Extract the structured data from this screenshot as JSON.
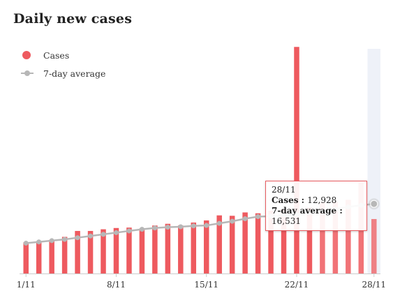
{
  "title": "Daily new cases",
  "legend": {
    "cases_label": "Cases",
    "avg_label": "7-day average"
  },
  "tooltip": {
    "date": "28/11",
    "cases_label": "Cases",
    "cases_value": "12,928",
    "avg_label": "7-day average",
    "avg_value": "16,531"
  },
  "colors": {
    "cases": "#ee5a5f",
    "average": "#b7b7b7",
    "highlight_band": "#eef1f8"
  },
  "chart_data": {
    "type": "bar",
    "title": "Daily new cases",
    "x_tick_labels": [
      "1/11",
      "8/11",
      "15/11",
      "22/11",
      "28/11"
    ],
    "categories": [
      "1/11",
      "2/11",
      "3/11",
      "4/11",
      "5/11",
      "6/11",
      "7/11",
      "8/11",
      "9/11",
      "10/11",
      "11/11",
      "12/11",
      "13/11",
      "14/11",
      "15/11",
      "16/11",
      "17/11",
      "18/11",
      "19/11",
      "20/11",
      "21/11",
      "22/11",
      "23/11",
      "24/11",
      "25/11",
      "26/11",
      "27/11",
      "28/11"
    ],
    "series": [
      {
        "name": "Cases",
        "type": "bar",
        "values": [
          7400,
          7700,
          8000,
          8700,
          10100,
          10100,
          10500,
          10800,
          10900,
          10700,
          11400,
          11800,
          11400,
          12100,
          12600,
          13800,
          13700,
          14500,
          14300,
          14900,
          15300,
          53800,
          15700,
          17000,
          17100,
          17500,
          21600,
          12928
        ]
      },
      {
        "name": "7-day average",
        "type": "line",
        "values": [
          7200,
          7500,
          7800,
          8100,
          8500,
          8900,
          9300,
          9700,
          10100,
          10500,
          10800,
          11000,
          11100,
          11300,
          11400,
          11900,
          12400,
          13000,
          13500,
          13600,
          13900,
          14000,
          14500,
          14800,
          15300,
          15800,
          16200,
          16531
        ]
      }
    ],
    "highlighted_index": 27,
    "ylim": [
      0,
      55000
    ],
    "grid": false,
    "legend_position": "top-left"
  }
}
